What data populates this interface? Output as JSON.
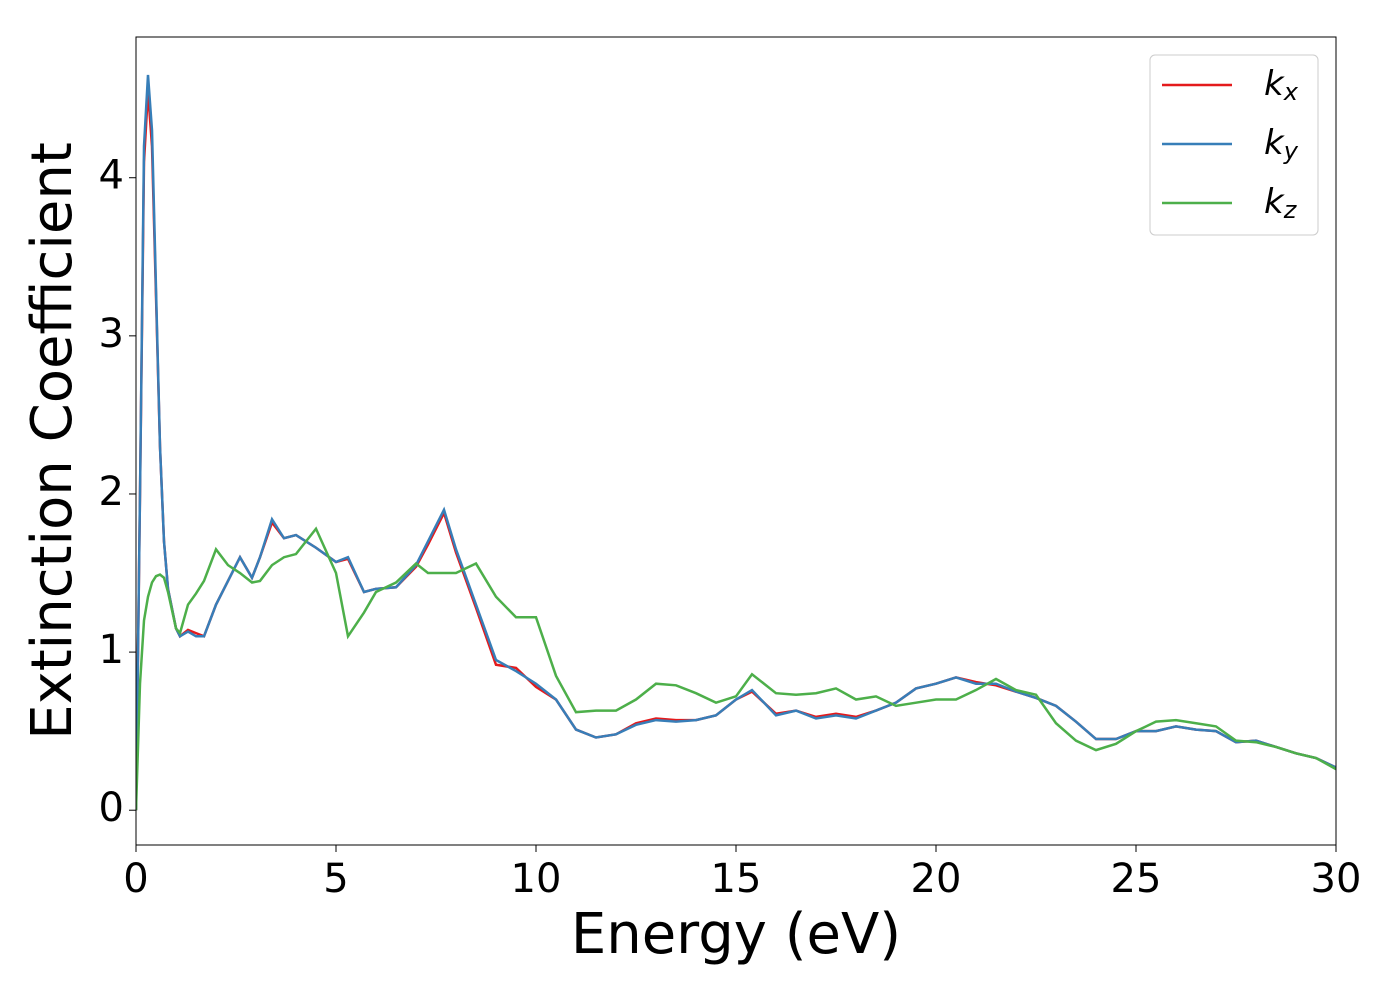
{
  "chart_data": {
    "type": "line",
    "xlabel": "Energy (eV)",
    "ylabel": "Extinction Coefficient",
    "x": [
      0,
      0.1,
      0.2,
      0.3,
      0.4,
      0.5,
      0.6,
      0.7,
      0.8,
      1.0,
      1.1,
      1.3,
      1.5,
      1.7,
      2.0,
      2.3,
      2.6,
      2.9,
      3.1,
      3.4,
      3.7,
      4.0,
      4.5,
      5.0,
      5.3,
      5.7,
      6.0,
      6.5,
      7.0,
      7.3,
      7.7,
      8.0,
      8.5,
      9.0,
      9.5,
      10.0,
      10.5,
      11.0,
      11.5,
      12.0,
      12.5,
      13.0,
      13.5,
      14.0,
      14.5,
      15.0,
      15.4,
      16.0,
      16.5,
      17.0,
      17.5,
      18.0,
      18.5,
      19.0,
      19.5,
      20.0,
      20.5,
      21.0,
      21.5,
      22.0,
      22.5,
      23.0,
      23.5,
      24.0,
      24.5,
      25.0,
      25.5,
      26.0,
      26.5,
      27.0,
      27.5,
      28.0,
      28.5,
      29.0,
      29.5,
      30.0
    ],
    "series": [
      {
        "name": "kx",
        "color": "#e41a1c",
        "values": [
          0,
          2.0,
          4.1,
          4.55,
          4.2,
          3.25,
          2.3,
          1.7,
          1.4,
          1.15,
          1.1,
          1.14,
          1.12,
          1.1,
          1.3,
          1.45,
          1.6,
          1.47,
          1.6,
          1.82,
          1.72,
          1.74,
          1.66,
          1.57,
          1.59,
          1.38,
          1.4,
          1.41,
          1.54,
          1.68,
          1.88,
          1.63,
          1.28,
          0.92,
          0.9,
          0.78,
          0.7,
          0.51,
          0.46,
          0.48,
          0.55,
          0.58,
          0.57,
          0.57,
          0.6,
          0.7,
          0.75,
          0.61,
          0.63,
          0.59,
          0.61,
          0.59,
          0.63,
          0.68,
          0.77,
          0.8,
          0.84,
          0.81,
          0.79,
          0.75,
          0.71,
          0.66,
          0.56,
          0.45,
          0.45,
          0.5,
          0.5,
          0.53,
          0.51,
          0.5,
          0.43,
          0.44,
          0.4,
          0.36,
          0.33,
          0.27
        ]
      },
      {
        "name": "ky",
        "color": "#377eb8",
        "values": [
          0,
          2.0,
          4.2,
          4.65,
          4.3,
          3.3,
          2.3,
          1.7,
          1.4,
          1.15,
          1.1,
          1.13,
          1.1,
          1.1,
          1.3,
          1.45,
          1.6,
          1.47,
          1.6,
          1.84,
          1.72,
          1.74,
          1.66,
          1.57,
          1.6,
          1.38,
          1.4,
          1.41,
          1.55,
          1.7,
          1.9,
          1.65,
          1.3,
          0.95,
          0.88,
          0.8,
          0.7,
          0.51,
          0.46,
          0.48,
          0.54,
          0.57,
          0.56,
          0.57,
          0.6,
          0.7,
          0.76,
          0.6,
          0.63,
          0.58,
          0.6,
          0.58,
          0.63,
          0.68,
          0.77,
          0.8,
          0.84,
          0.8,
          0.8,
          0.75,
          0.71,
          0.66,
          0.56,
          0.45,
          0.45,
          0.5,
          0.5,
          0.53,
          0.51,
          0.5,
          0.43,
          0.44,
          0.4,
          0.36,
          0.33,
          0.27
        ]
      },
      {
        "name": "kz",
        "color": "#4daf4a",
        "values": [
          0,
          0.8,
          1.2,
          1.35,
          1.44,
          1.48,
          1.49,
          1.47,
          1.38,
          1.15,
          1.12,
          1.3,
          1.37,
          1.45,
          1.65,
          1.55,
          1.5,
          1.44,
          1.45,
          1.55,
          1.6,
          1.62,
          1.78,
          1.5,
          1.1,
          1.25,
          1.38,
          1.44,
          1.56,
          1.5,
          1.5,
          1.5,
          1.56,
          1.35,
          1.22,
          1.22,
          0.85,
          0.62,
          0.63,
          0.63,
          0.7,
          0.8,
          0.79,
          0.74,
          0.68,
          0.72,
          0.86,
          0.74,
          0.73,
          0.74,
          0.77,
          0.7,
          0.72,
          0.66,
          0.68,
          0.7,
          0.7,
          0.76,
          0.83,
          0.76,
          0.73,
          0.55,
          0.44,
          0.38,
          0.42,
          0.5,
          0.56,
          0.57,
          0.55,
          0.53,
          0.44,
          0.43,
          0.4,
          0.36,
          0.33,
          0.26
        ]
      }
    ],
    "xlim": [
      0,
      30
    ],
    "xticks": [
      0,
      5,
      10,
      15,
      20,
      25,
      30
    ],
    "ylim": [
      -0.22,
      4.89
    ],
    "yticks": [
      0,
      1,
      2,
      3,
      4
    ],
    "grid": false,
    "legend": "upper right"
  }
}
